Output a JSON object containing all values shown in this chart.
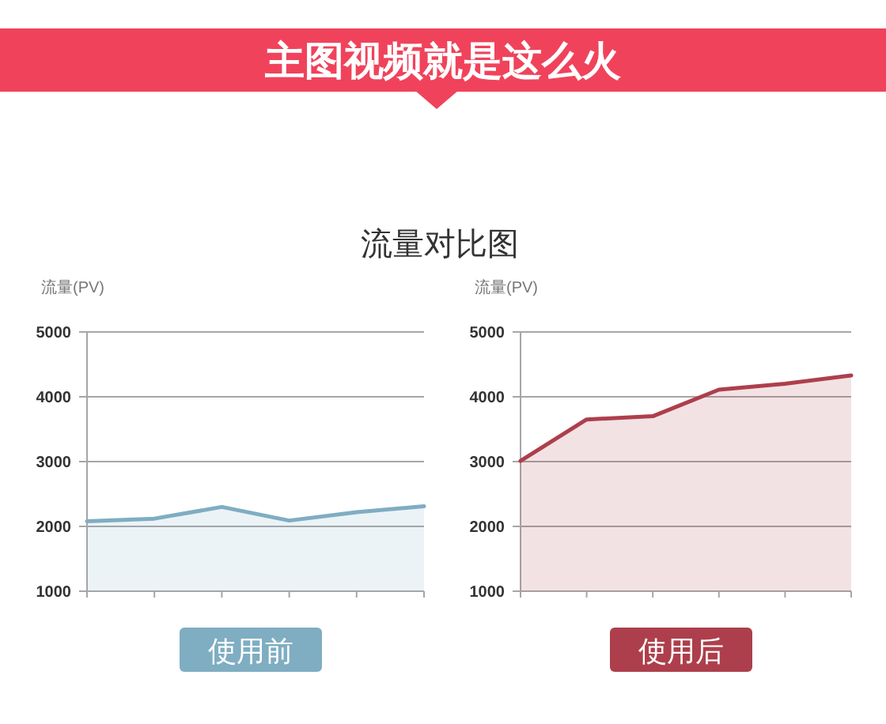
{
  "chart_data": [
    {
      "type": "area",
      "title": "主图视频就是这么火",
      "subtitle": "流量对比图",
      "ylabel": "流量(PV)",
      "xlabel": "使用前",
      "categories": [
        null,
        null,
        null,
        null,
        null,
        null
      ],
      "series": [
        {
          "color": "#7fadc2",
          "values": [
            2080,
            2120,
            2300,
            2090,
            2220,
            2310
          ]
        }
      ],
      "ylim": [
        1000,
        5000
      ],
      "yticks": [
        1000,
        2000,
        3000,
        4000,
        5000
      ],
      "grid": "y"
    },
    {
      "type": "area",
      "ylabel": "流量(PV)",
      "xlabel": "使用后",
      "categories": [
        null,
        null,
        null,
        null,
        null,
        null
      ],
      "series": [
        {
          "color": "#ad3f4c",
          "values": [
            3010,
            3650,
            3700,
            4110,
            4200,
            4330
          ]
        }
      ],
      "ylim": [
        1000,
        5000
      ],
      "yticks": [
        1000,
        2000,
        3000,
        4000,
        5000
      ],
      "grid": "y"
    }
  ]
}
